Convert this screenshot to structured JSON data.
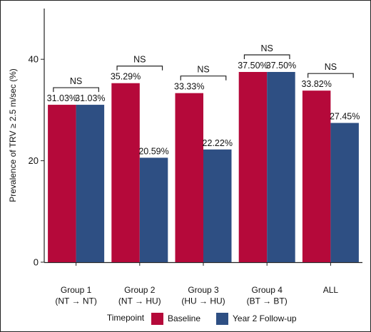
{
  "chart_data": {
    "type": "bar",
    "ylabel": "Prevalence of TRV ≥ 2.5 m/sec (%)",
    "xlabel": "",
    "ylim": [
      0,
      50
    ],
    "yticks": [
      0,
      20,
      40
    ],
    "grid": false,
    "categories": [
      [
        "Group 1",
        "(NT → NT)"
      ],
      [
        "Group 2",
        "(NT → HU)"
      ],
      [
        "Group 3",
        "(HU → HU)"
      ],
      [
        "Group 4",
        "(BT → BT)"
      ],
      [
        "ALL"
      ]
    ],
    "series": [
      {
        "name": "Baseline",
        "color": "#B5093A",
        "values": [
          31.03,
          35.29,
          33.33,
          37.5,
          33.82
        ],
        "labels": [
          "31.03%",
          "35.29%",
          "33.33%",
          "37.50%",
          "33.82%"
        ]
      },
      {
        "name": "Year 2 Follow-up",
        "color": "#2E4F83",
        "values": [
          31.03,
          20.59,
          22.22,
          37.5,
          27.45
        ],
        "labels": [
          "31.03%",
          "20.59%",
          "22.22%",
          "37.50%",
          "27.45%"
        ]
      }
    ],
    "annotations": [
      "NS",
      "NS",
      "NS",
      "NS",
      "NS"
    ],
    "legend": {
      "title": "Timepoint",
      "position": "bottom"
    }
  }
}
